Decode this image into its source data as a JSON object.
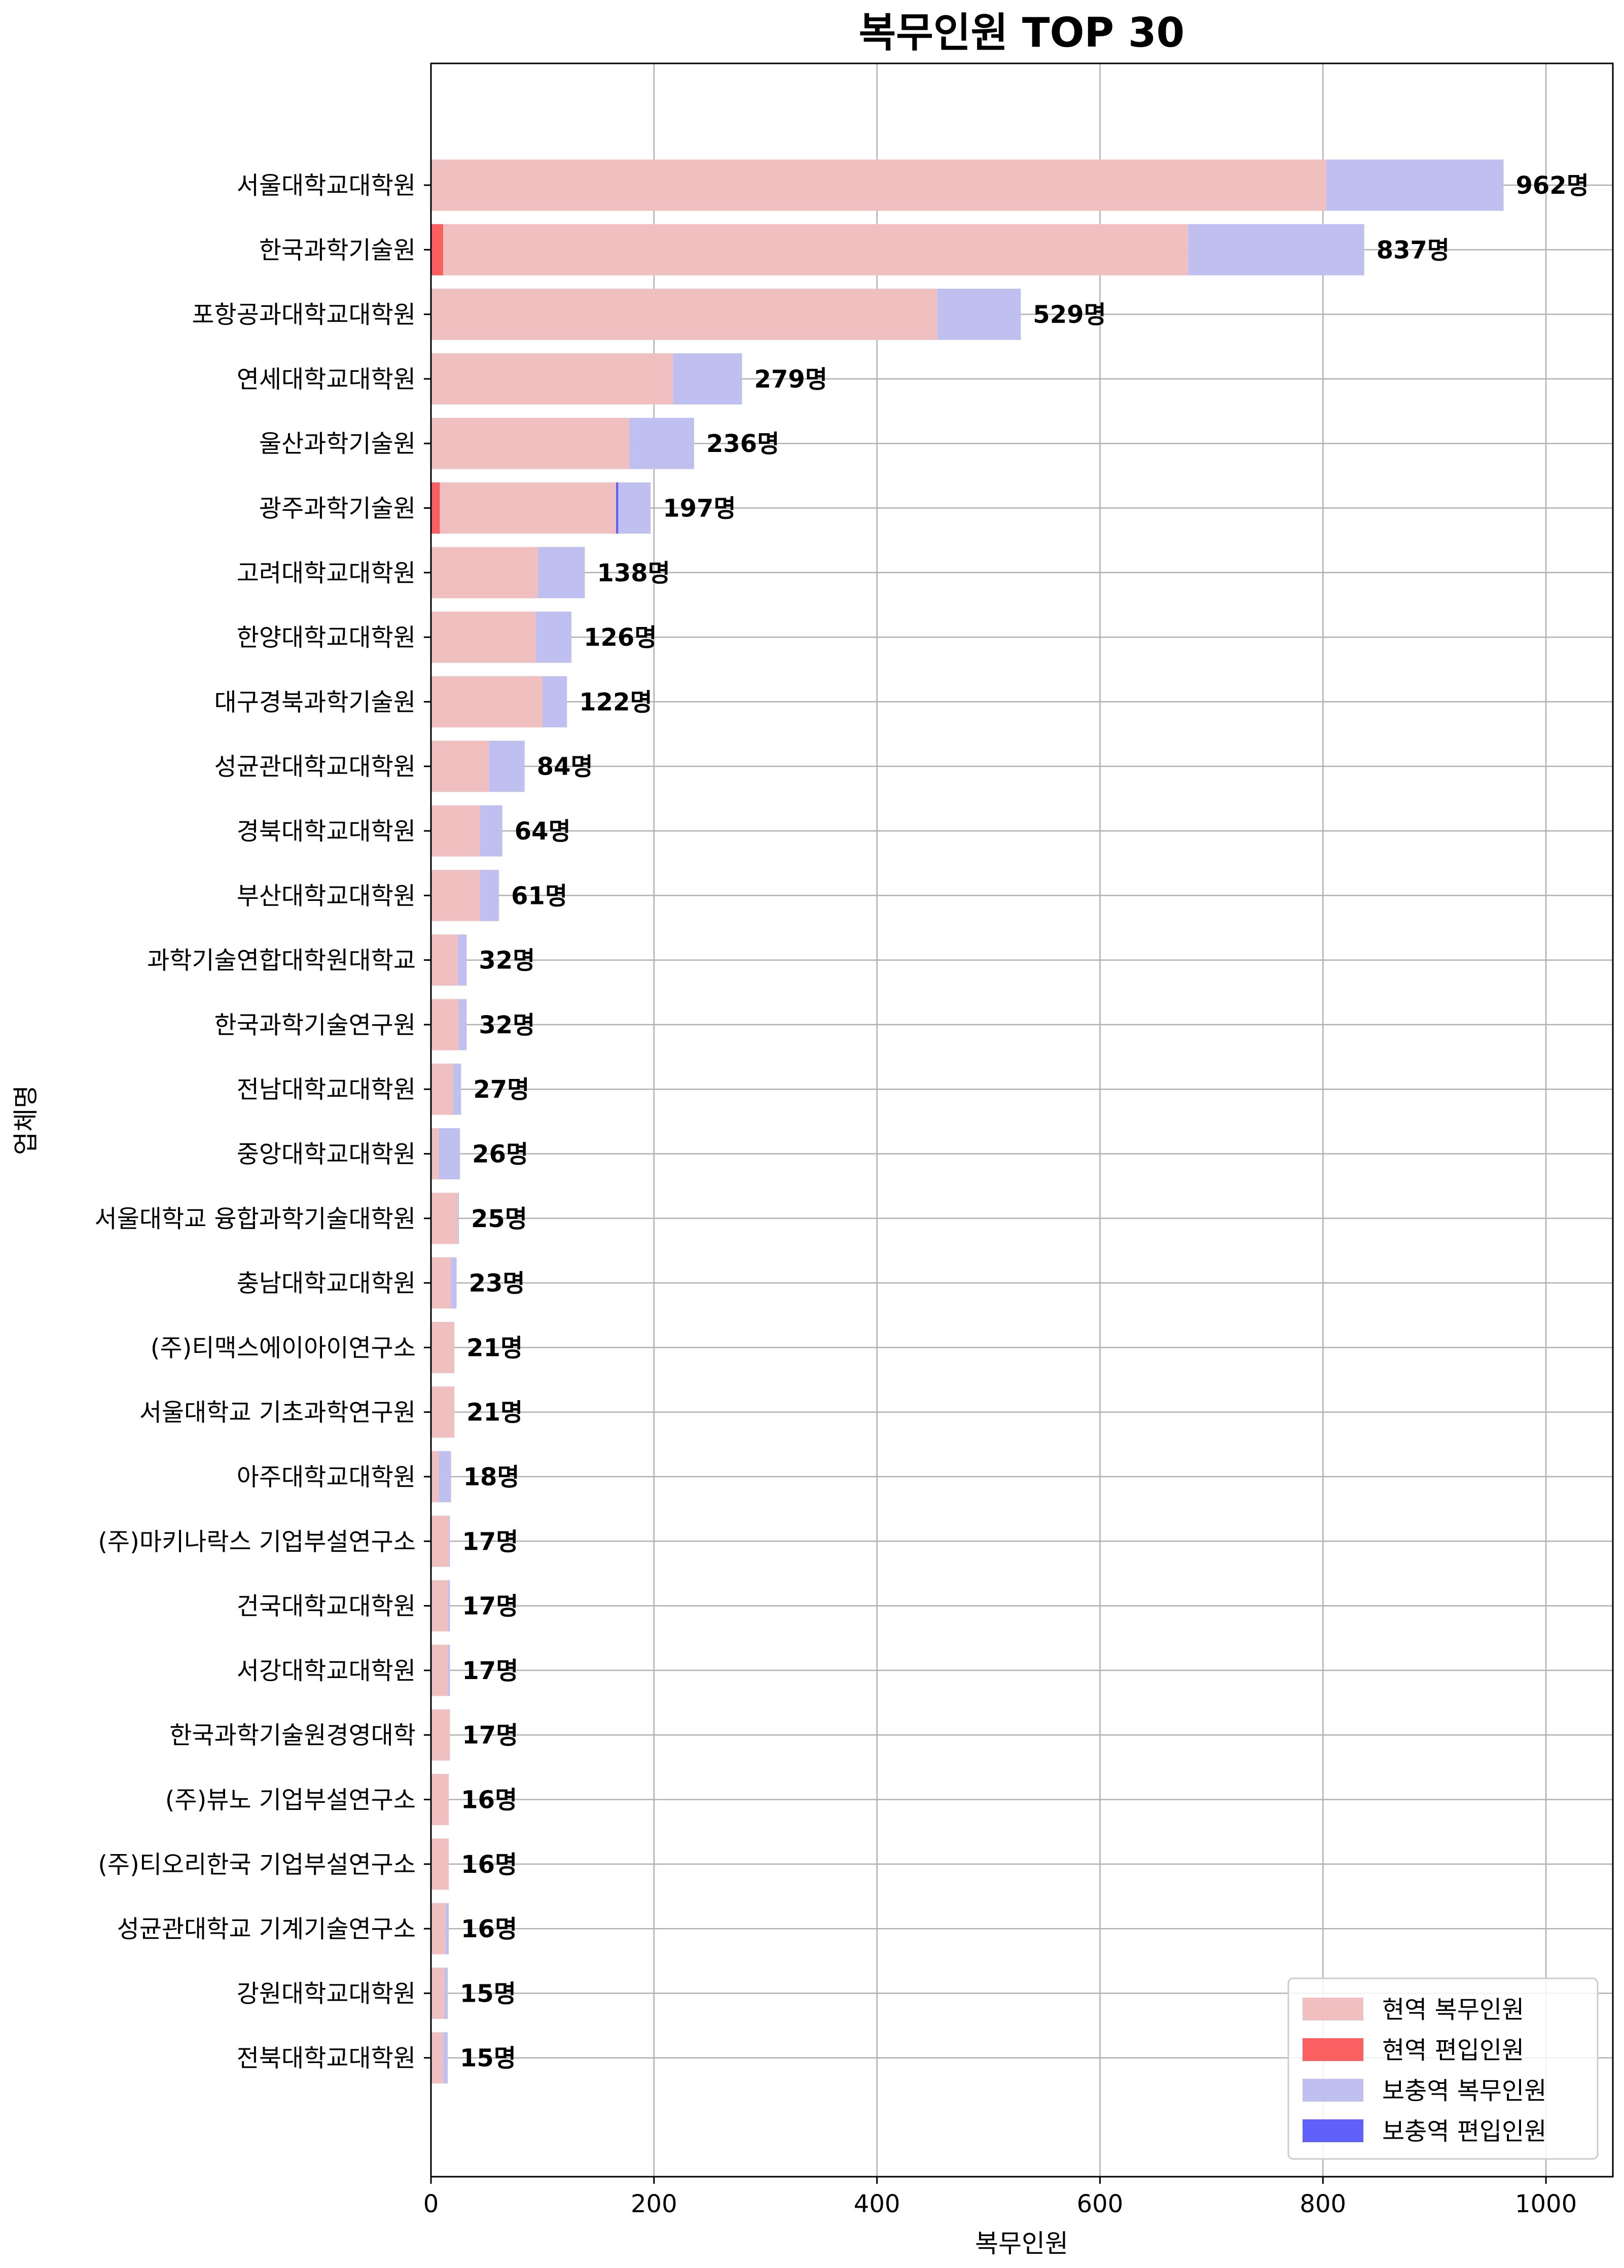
{
  "chart_data": {
    "type": "bar",
    "orientation": "horizontal",
    "stacked": true,
    "title": "복무인원  TOP  30",
    "xlabel": "복무인원",
    "ylabel": "업체명",
    "xlim": [
      0,
      1060
    ],
    "xticks": [
      0,
      200,
      400,
      600,
      800,
      1000
    ],
    "grid": true,
    "legend_position": "lower-right",
    "categories": [
      "서울대학교대학원",
      "한국과학기술원",
      "포항공과대학교대학원",
      "연세대학교대학원",
      "울산과학기술원",
      "광주과학기술원",
      "고려대학교대학원",
      "한양대학교대학원",
      "대구경북과학기술원",
      "성균관대학교대학원",
      "경북대학교대학원",
      "부산대학교대학원",
      "과학기술연합대학원대학교",
      "한국과학기술연구원",
      "전남대학교대학원",
      "중앙대학교대학원",
      "서울대학교  융합과학기술대학원",
      "충남대학교대학원",
      "(주)티맥스에이아이연구소",
      "서울대학교  기초과학연구원",
      "아주대학교대학원",
      "(주)마키나락스  기업부설연구소",
      "건국대학교대학원",
      "서강대학교대학원",
      "한국과학기술원경영대학",
      "(주)뷰노  기업부설연구소",
      "(주)티오리한국  기업부설연구소",
      "성균관대학교  기계기술연구소",
      "강원대학교대학원",
      "전북대학교대학원"
    ],
    "series": [
      {
        "name": "현역  편입인원",
        "color": "#fa6060",
        "values": [
          0,
          11,
          0,
          0,
          0,
          8,
          0,
          0,
          0,
          0,
          0,
          0,
          0,
          0,
          0,
          0,
          0,
          0,
          0,
          0,
          0,
          0,
          0,
          0,
          0,
          0,
          0,
          0,
          0,
          0
        ]
      },
      {
        "name": "현역  복무인원",
        "color": "#f0c0c0",
        "values": [
          803,
          668,
          454,
          217,
          178,
          158,
          96,
          94,
          100,
          52,
          44,
          44,
          24,
          25,
          20,
          7,
          24,
          18,
          21,
          21,
          7,
          16,
          15,
          15,
          17,
          16,
          16,
          13,
          12,
          11
        ]
      },
      {
        "name": "보충역  편입인원",
        "color": "#6060fa",
        "values": [
          0,
          0,
          0,
          0,
          0,
          2,
          0,
          0,
          0,
          0,
          0,
          0,
          0,
          0,
          0,
          0,
          0,
          0,
          0,
          0,
          0,
          0,
          0,
          0,
          0,
          0,
          0,
          0,
          0,
          0
        ]
      },
      {
        "name": "보충역  복무인원",
        "color": "#c0c0f0",
        "values": [
          159,
          158,
          75,
          62,
          58,
          29,
          42,
          32,
          22,
          32,
          20,
          17,
          8,
          7,
          7,
          19,
          1,
          5,
          0,
          0,
          11,
          1,
          2,
          2,
          0,
          0,
          0,
          3,
          3,
          4
        ]
      }
    ],
    "totals": [
      962,
      837,
      529,
      279,
      236,
      197,
      138,
      126,
      122,
      84,
      64,
      61,
      32,
      32,
      27,
      26,
      25,
      23,
      21,
      21,
      18,
      17,
      17,
      17,
      17,
      16,
      16,
      16,
      15,
      15
    ],
    "value_label_suffix": "명",
    "legend": [
      {
        "label": "현역  복무인원",
        "color": "#f0c0c0"
      },
      {
        "label": "현역  편입인원",
        "color": "#fa6060"
      },
      {
        "label": "보충역  복무인원",
        "color": "#c0c0f0"
      },
      {
        "label": "보충역  편입인원",
        "color": "#6060fa"
      }
    ]
  }
}
